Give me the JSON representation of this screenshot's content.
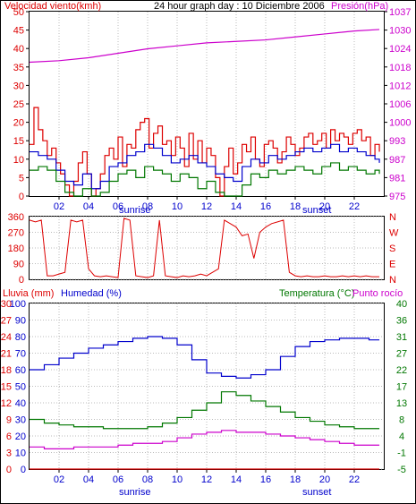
{
  "chart_data": [
    {
      "type": "line",
      "title": "24 hour graph day : 10 Diciembre 2006",
      "left_label": "Velocidad viento(kmh)",
      "right_label": "Presión(hPa)",
      "x_ticks": [
        "02",
        "04",
        "06",
        "08",
        "10",
        "12",
        "14",
        "16",
        "18",
        "20",
        "22"
      ],
      "sunrise_label": "sunrise",
      "sunset_label": "sunset",
      "left_ticks": [
        "0",
        "5",
        "10",
        "15",
        "20",
        "25",
        "30",
        "35",
        "40",
        "45",
        "50"
      ],
      "right_ticks": [
        "975",
        "981",
        "987",
        "993",
        "1000",
        "1006",
        "1012",
        "1018",
        "1024",
        "1030",
        "1037"
      ],
      "ylim_left": [
        0,
        50
      ],
      "ylim_right": [
        975,
        1037
      ],
      "series": [
        {
          "name": "gust",
          "color": "#dd0000",
          "axis": "left",
          "x": [
            0,
            0.3,
            0.6,
            0.9,
            1.2,
            1.5,
            1.8,
            2.1,
            2.4,
            2.7,
            3,
            3.3,
            3.6,
            3.9,
            4.2,
            4.5,
            4.8,
            5.1,
            5.4,
            5.7,
            6,
            6.3,
            6.6,
            6.9,
            7.2,
            7.5,
            7.8,
            8.1,
            8.4,
            8.7,
            9,
            9.3,
            9.6,
            9.9,
            10.2,
            10.5,
            10.8,
            11.1,
            11.4,
            11.7,
            12,
            12.3,
            12.6,
            12.9,
            13.2,
            13.5,
            13.8,
            14.1,
            14.4,
            14.7,
            15,
            15.3,
            15.6,
            15.9,
            16.2,
            16.5,
            16.8,
            17.1,
            17.4,
            17.7,
            18,
            18.3,
            18.6,
            18.9,
            19.2,
            19.5,
            19.8,
            20.1,
            20.4,
            20.7,
            21,
            21.3,
            21.6,
            21.9,
            22.2,
            22.5,
            22.8,
            23.1,
            23.4,
            23.7
          ],
          "values": [
            14,
            24,
            18,
            15,
            11,
            13,
            9,
            6,
            3,
            0,
            4,
            9,
            12,
            6,
            0,
            2,
            6,
            11,
            13,
            10,
            16,
            8,
            14,
            13,
            18,
            20,
            21,
            13,
            17,
            19,
            14,
            15,
            11,
            16,
            13,
            8,
            17,
            10,
            15,
            9,
            13,
            11,
            5,
            0,
            8,
            13,
            6,
            9,
            14,
            12,
            16,
            10,
            8,
            14,
            15,
            13,
            9,
            12,
            16,
            14,
            11,
            13,
            16,
            17,
            14,
            15,
            17,
            13,
            18,
            15,
            17,
            16,
            14,
            17,
            18,
            15,
            16,
            11,
            14,
            12
          ]
        },
        {
          "name": "wind",
          "color": "#0000cc",
          "axis": "left",
          "x": [
            0,
            0.6,
            1.2,
            1.8,
            2.4,
            3,
            3.6,
            4.2,
            4.8,
            5.4,
            6,
            6.6,
            7.2,
            7.8,
            8.4,
            9,
            9.6,
            10.2,
            10.8,
            11.4,
            12,
            12.6,
            13.2,
            13.8,
            14.4,
            15,
            15.6,
            16.2,
            16.8,
            17.4,
            18,
            18.6,
            19.2,
            19.8,
            20.4,
            21,
            21.6,
            22.2,
            22.8,
            23.4,
            23.7
          ],
          "values": [
            12,
            11,
            10,
            7,
            4,
            3,
            6,
            2,
            4,
            8,
            9,
            11,
            12,
            14,
            13,
            11,
            9,
            10,
            11,
            9,
            8,
            6,
            5,
            4,
            8,
            10,
            9,
            11,
            10,
            11,
            12,
            13,
            12,
            13,
            14,
            12,
            13,
            12,
            11,
            10,
            9
          ]
        },
        {
          "name": "minimum",
          "color": "#007700",
          "axis": "left",
          "x": [
            0,
            0.6,
            1.2,
            1.8,
            2.4,
            3,
            3.6,
            4.2,
            4.8,
            5.4,
            6,
            6.6,
            7.2,
            7.8,
            8.4,
            9,
            9.6,
            10.2,
            10.8,
            11.4,
            12,
            12.6,
            13.2,
            13.8,
            14.4,
            15,
            15.6,
            16.2,
            16.8,
            17.4,
            18,
            18.6,
            19.2,
            19.8,
            20.4,
            21,
            21.6,
            22.2,
            22.8,
            23.4,
            23.7
          ],
          "values": [
            7,
            8,
            7,
            4,
            1,
            0,
            2,
            0,
            1,
            4,
            6,
            7,
            5,
            8,
            7,
            6,
            4,
            6,
            5,
            2,
            4,
            1,
            0,
            0,
            3,
            6,
            5,
            7,
            6,
            7,
            8,
            7,
            6,
            8,
            9,
            7,
            8,
            7,
            6,
            7,
            6
          ]
        },
        {
          "name": "pressure",
          "color": "#cc00cc",
          "axis": "right",
          "x": [
            0,
            2,
            4,
            6,
            8,
            10,
            12,
            14,
            16,
            18,
            20,
            22,
            23.7
          ],
          "values": [
            1020,
            1020.5,
            1021.5,
            1023,
            1024.5,
            1025.5,
            1026.5,
            1027,
            1027.5,
            1028.5,
            1029.5,
            1030.5,
            1031
          ]
        }
      ]
    },
    {
      "type": "line",
      "left_ticks": [
        "0",
        "90",
        "180",
        "270",
        "360"
      ],
      "ylim_left": [
        0,
        360
      ],
      "right_ticks": [
        "N",
        "E",
        "S",
        "W",
        "N"
      ],
      "series": [
        {
          "name": "direction",
          "color": "#dd0000",
          "x": [
            0,
            0.4,
            0.8,
            1.2,
            1.6,
            2.0,
            2.4,
            2.8,
            3.2,
            3.6,
            4.0,
            4.4,
            4.8,
            5.2,
            5.6,
            6.0,
            6.4,
            6.8,
            7.2,
            7.6,
            8.0,
            8.4,
            8.8,
            9.2,
            9.6,
            10.0,
            10.4,
            10.8,
            11.2,
            11.6,
            12.0,
            12.4,
            12.8,
            13.2,
            13.6,
            14.0,
            14.4,
            14.8,
            15.2,
            15.6,
            16.0,
            16.4,
            16.8,
            17.2,
            17.6,
            18.0,
            18.4,
            18.8,
            19.2,
            19.6,
            20.0,
            20.4,
            20.8,
            21.2,
            21.6,
            22.0,
            22.4,
            22.8,
            23.2,
            23.7
          ],
          "values": [
            340,
            330,
            340,
            20,
            20,
            30,
            40,
            340,
            330,
            340,
            60,
            20,
            15,
            20,
            15,
            10,
            350,
            340,
            20,
            15,
            10,
            20,
            340,
            20,
            15,
            10,
            20,
            15,
            20,
            30,
            20,
            40,
            60,
            340,
            320,
            300,
            250,
            260,
            120,
            270,
            300,
            320,
            330,
            340,
            40,
            20,
            15,
            20,
            15,
            15,
            20,
            15,
            15,
            20,
            15,
            20,
            15,
            20,
            15,
            15
          ]
        }
      ]
    },
    {
      "type": "line",
      "left_label_rain": "Lluvia (mm)",
      "left_label_hum": "Humedad (%)",
      "right_label_temp": "Temperatura (°C)",
      "right_label_dew": "Punto rocío",
      "rain_ticks": [
        "0",
        "3",
        "6",
        "9",
        "12",
        "15",
        "18",
        "21",
        "24",
        "27",
        "30"
      ],
      "humidity_ticks": [
        "0",
        "10",
        "20",
        "30",
        "40",
        "50",
        "60",
        "70",
        "80",
        "90",
        "100"
      ],
      "temp_ticks_right": [
        "-5",
        "-1",
        "4",
        "8",
        "13",
        "17",
        "22",
        "27",
        "31",
        "36",
        "40"
      ],
      "ylim_humidity": [
        0,
        100
      ],
      "ylim_temp": [
        -5,
        40
      ],
      "series": [
        {
          "name": "humidity",
          "color": "#0000cc",
          "axis": "humidity",
          "x": [
            0,
            1,
            2,
            3,
            4,
            5,
            6,
            7,
            8,
            9,
            10,
            11,
            12,
            13,
            14,
            15,
            16,
            17,
            18,
            19,
            20,
            21,
            22,
            23,
            23.7
          ],
          "values": [
            60,
            63,
            67,
            70,
            73,
            75,
            77,
            79,
            80,
            79,
            75,
            66,
            58,
            56,
            55,
            57,
            60,
            68,
            74,
            77,
            78,
            79,
            79,
            78,
            78
          ]
        },
        {
          "name": "temperature",
          "color": "#007700",
          "axis": "temp",
          "x": [
            0,
            1,
            2,
            3,
            4,
            5,
            6,
            7,
            8,
            9,
            10,
            11,
            12,
            13,
            14,
            15,
            16,
            17,
            18,
            19,
            20,
            21,
            22,
            23,
            23.7
          ],
          "values": [
            8.5,
            7.5,
            7,
            6.5,
            6.5,
            6,
            6,
            6,
            6.5,
            7.5,
            9,
            11,
            13,
            16,
            15,
            13.5,
            12,
            10.5,
            9,
            8,
            7,
            6.5,
            6,
            6,
            6
          ]
        },
        {
          "name": "dewpoint",
          "color": "#cc00cc",
          "axis": "temp",
          "x": [
            0,
            1,
            2,
            3,
            4,
            5,
            6,
            7,
            8,
            9,
            10,
            11,
            12,
            13,
            14,
            15,
            16,
            17,
            18,
            19,
            20,
            21,
            22,
            23,
            23.7
          ],
          "values": [
            1,
            0.5,
            0.5,
            1,
            1,
            1,
            1.5,
            2,
            2,
            2.5,
            3.5,
            4.5,
            5,
            5.5,
            5,
            5,
            4.5,
            4,
            3.5,
            3,
            2.5,
            2,
            1.5,
            1.5,
            1.5
          ]
        },
        {
          "name": "rain",
          "color": "#dd0000",
          "axis": "humidity",
          "x": [
            0,
            23.7
          ],
          "values": [
            0,
            0
          ]
        }
      ]
    }
  ]
}
